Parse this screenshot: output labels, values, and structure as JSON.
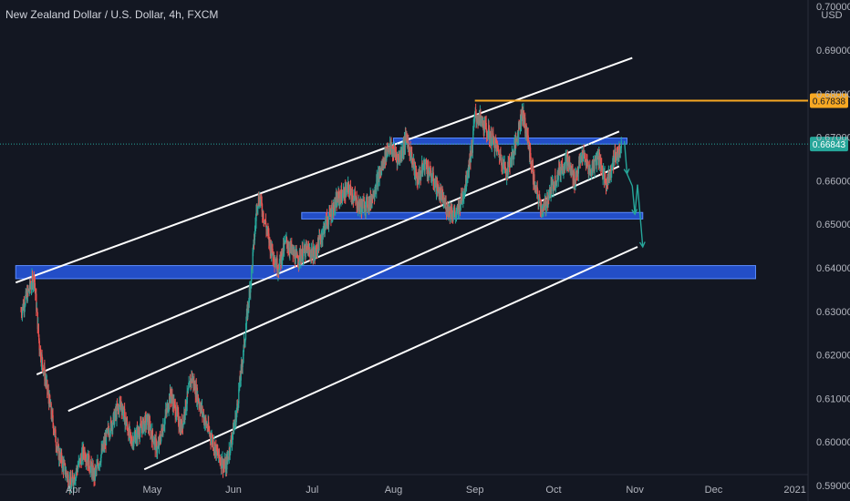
{
  "header": {
    "title": "New Zealand Dollar / U.S. Dollar, 4h, FXCM"
  },
  "colors": {
    "background": "#131722",
    "up_candle": "#26a69a",
    "down_candle": "#ef5350",
    "channel_line": "#ffffff",
    "zone_fill": "#2962ff",
    "resistance_line": "#f7a823",
    "last_price_line": "#26a69a",
    "forecast_arrow": "#26a69a"
  },
  "icons": {
    "forecast": "arrow-down-icon"
  },
  "chart_data": {
    "type": "candlestick",
    "title": "New Zealand Dollar / U.S. Dollar, 4h, FXCM",
    "symbol": "NZDUSD",
    "interval": "4h",
    "source": "FXCM",
    "currency": "USD",
    "ylim": [
      0.5925,
      0.7015
    ],
    "y_ticks": [
      "0.59000",
      "0.60000",
      "0.61000",
      "0.62000",
      "0.63000",
      "0.64000",
      "0.65000",
      "0.66000",
      "0.67000",
      "0.68000",
      "0.69000",
      "0.70000"
    ],
    "x_ticks": [
      "Apr",
      "May",
      "Jun",
      "Jul",
      "Aug",
      "Sep",
      "Oct",
      "Nov",
      "Dec",
      "2021"
    ],
    "last_price": "0.66843",
    "resistance_level": "0.67838",
    "close_path": [
      {
        "t": "Mar 12",
        "v": 0.63
      },
      {
        "t": "Mar 17",
        "v": 0.638
      },
      {
        "t": "Mar 19",
        "v": 0.622
      },
      {
        "t": "Mar 22",
        "v": 0.612
      },
      {
        "t": "Mar 26",
        "v": 0.598
      },
      {
        "t": "Mar 31",
        "v": 0.59
      },
      {
        "t": "Apr 5",
        "v": 0.598
      },
      {
        "t": "Apr 9",
        "v": 0.592
      },
      {
        "t": "Apr 14",
        "v": 0.602
      },
      {
        "t": "Apr 19",
        "v": 0.609
      },
      {
        "t": "Apr 23",
        "v": 0.6
      },
      {
        "t": "Apr 29",
        "v": 0.605
      },
      {
        "t": "May 3",
        "v": 0.598
      },
      {
        "t": "May 8",
        "v": 0.611
      },
      {
        "t": "May 12",
        "v": 0.603
      },
      {
        "t": "May 16",
        "v": 0.615
      },
      {
        "t": "May 21",
        "v": 0.605
      },
      {
        "t": "May 26",
        "v": 0.597
      },
      {
        "t": "May 29",
        "v": 0.594
      },
      {
        "t": "Jun 2",
        "v": 0.606
      },
      {
        "t": "Jun 5",
        "v": 0.622
      },
      {
        "t": "Jun 8",
        "v": 0.64
      },
      {
        "t": "Jun 10",
        "v": 0.655
      },
      {
        "t": "Jun 11",
        "v": 0.656
      },
      {
        "t": "Jun 15",
        "v": 0.645
      },
      {
        "t": "Jun 18",
        "v": 0.64
      },
      {
        "t": "Jun 21",
        "v": 0.646
      },
      {
        "t": "Jun 25",
        "v": 0.642
      },
      {
        "t": "Jun 29",
        "v": 0.644
      },
      {
        "t": "Jul 2",
        "v": 0.643
      },
      {
        "t": "Jul 6",
        "v": 0.65
      },
      {
        "t": "Jul 11",
        "v": 0.656
      },
      {
        "t": "Jul 15",
        "v": 0.658
      },
      {
        "t": "Jul 19",
        "v": 0.654
      },
      {
        "t": "Jul 23",
        "v": 0.655
      },
      {
        "t": "Jul 27",
        "v": 0.662
      },
      {
        "t": "Jul 30",
        "v": 0.668
      },
      {
        "t": "Aug 3",
        "v": 0.665
      },
      {
        "t": "Aug 6",
        "v": 0.67
      },
      {
        "t": "Aug 10",
        "v": 0.66
      },
      {
        "t": "Aug 13",
        "v": 0.664
      },
      {
        "t": "Aug 17",
        "v": 0.659
      },
      {
        "t": "Aug 21",
        "v": 0.654
      },
      {
        "t": "Aug 25",
        "v": 0.652
      },
      {
        "t": "Aug 28",
        "v": 0.658
      },
      {
        "t": "Aug 31",
        "v": 0.668
      },
      {
        "t": "Sep 1",
        "v": 0.675
      },
      {
        "t": "Sep 3",
        "v": 0.674
      },
      {
        "t": "Sep 6",
        "v": 0.671
      },
      {
        "t": "Sep 9",
        "v": 0.668
      },
      {
        "t": "Sep 13",
        "v": 0.662
      },
      {
        "t": "Sep 16",
        "v": 0.667
      },
      {
        "t": "Sep 19",
        "v": 0.676
      },
      {
        "t": "Sep 21",
        "v": 0.67
      },
      {
        "t": "Sep 24",
        "v": 0.658
      },
      {
        "t": "Sep 27",
        "v": 0.653
      },
      {
        "t": "Sep 30",
        "v": 0.658
      },
      {
        "t": "Oct 3",
        "v": 0.662
      },
      {
        "t": "Oct 6",
        "v": 0.665
      },
      {
        "t": "Oct 9",
        "v": 0.66
      },
      {
        "t": "Oct 12",
        "v": 0.666
      },
      {
        "t": "Oct 15",
        "v": 0.662
      },
      {
        "t": "Oct 18",
        "v": 0.666
      },
      {
        "t": "Oct 21",
        "v": 0.659
      },
      {
        "t": "Oct 24",
        "v": 0.665
      },
      {
        "t": "Oct 27",
        "v": 0.668
      }
    ],
    "zones": [
      {
        "from": "Aug 1",
        "to": "Oct 29",
        "low": 0.6684,
        "high": 0.6698
      },
      {
        "from": "Jun 27",
        "to": "Nov 4",
        "low": 0.6512,
        "high": 0.6527
      },
      {
        "from": "Mar 10",
        "to": "Dec 17",
        "low": 0.6375,
        "high": 0.6405
      }
    ],
    "channel_lines": [
      {
        "from": {
          "t": "Mar 10",
          "v": 0.6366
        },
        "to": {
          "t": "Oct 31",
          "v": 0.6882
        }
      },
      {
        "from": {
          "t": "Mar 18",
          "v": 0.6155
        },
        "to": {
          "t": "Oct 26",
          "v": 0.6713
        }
      },
      {
        "from": {
          "t": "Mar 30",
          "v": 0.6071
        },
        "to": {
          "t": "Oct 26",
          "v": 0.6633
        }
      },
      {
        "from": {
          "t": "Apr 28",
          "v": 0.5937
        },
        "to": {
          "t": "Nov 2",
          "v": 0.6448
        }
      }
    ],
    "resistance_start": "Sep 1",
    "forecast_path": [
      {
        "t": "Oct 28",
        "v": 0.6691
      },
      {
        "t": "Oct 29",
        "v": 0.6616
      },
      {
        "t": "Oct 31",
        "v": 0.6588
      },
      {
        "t": "Nov 1",
        "v": 0.6523
      },
      {
        "t": "Nov 2",
        "v": 0.6591
      },
      {
        "t": "Nov 4",
        "v": 0.6448
      }
    ]
  }
}
